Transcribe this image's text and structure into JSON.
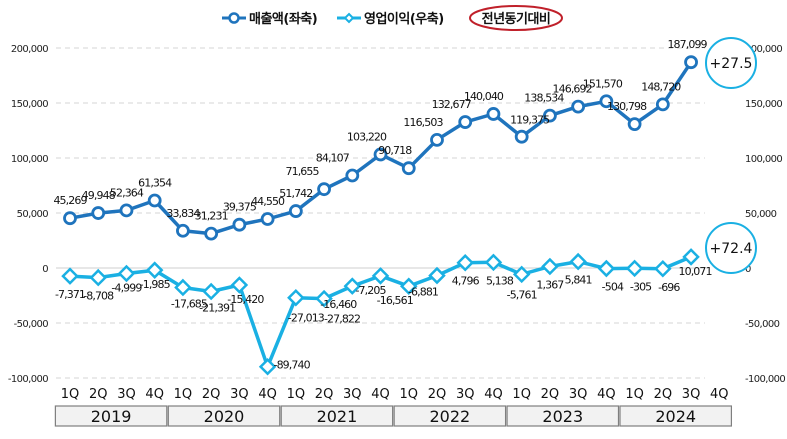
{
  "chart_data": {
    "type": "line",
    "title": "",
    "legend": {
      "placement": "top-center",
      "entries": [
        "매출액(좌축)",
        "영업이익(우축)"
      ],
      "note": "전년동기대비"
    },
    "x": [
      "2019 1Q",
      "2019 2Q",
      "2019 3Q",
      "2019 4Q",
      "2020 1Q",
      "2020 2Q",
      "2020 3Q",
      "2020 4Q",
      "2021 1Q",
      "2021 2Q",
      "2021 3Q",
      "2021 4Q",
      "2022 1Q",
      "2022 2Q",
      "2022 3Q",
      "2022 4Q",
      "2023 1Q",
      "2023 2Q",
      "2023 3Q",
      "2023 4Q",
      "2024 1Q",
      "2024 2Q",
      "2024 3Q",
      "2024 4Q"
    ],
    "quarters": [
      "1Q",
      "2Q",
      "3Q",
      "4Q"
    ],
    "years": [
      "2019",
      "2020",
      "2021",
      "2022",
      "2023",
      "2024"
    ],
    "series": [
      {
        "name": "매출액(좌축)",
        "axis": "left",
        "color": "#1f74bd",
        "marker": "circle",
        "values": [
          45269,
          49948,
          52364,
          61354,
          33834,
          31231,
          39375,
          44550,
          51742,
          71655,
          84107,
          103220,
          90718,
          116503,
          132677,
          140040,
          119375,
          138534,
          146692,
          151570,
          130798,
          148720,
          187099,
          null
        ],
        "labels": [
          "45,269",
          "49,948",
          "52,364",
          "61,354",
          "33,834",
          "31,231",
          "39,375",
          "44,550",
          "51,742",
          "71,655",
          "84,107",
          "103,220",
          "90,718",
          "116,503",
          "132,677",
          "140,040",
          "119,375",
          "138,534",
          "146,692",
          "151,570",
          "130,798",
          "148,720",
          "187,099",
          ""
        ]
      },
      {
        "name": "영업이익(우축)",
        "axis": "right",
        "color": "#1ab0e3",
        "marker": "diamond",
        "values": [
          -7371,
          -8708,
          -4999,
          -1985,
          -17685,
          -21391,
          -15420,
          -89740,
          -27013,
          -27822,
          -16460,
          -7205,
          -16561,
          -6881,
          4796,
          5138,
          -5761,
          1367,
          5841,
          -504,
          -305,
          -696,
          10071,
          null
        ],
        "labels": [
          "-7,371",
          "-8,708",
          "-4,999",
          "-1,985",
          "-17,685",
          "-21,391",
          "-15,420",
          "-89,740",
          "-27,013",
          "-27,822",
          "-16,460",
          "-7,205",
          "-16,561",
          "-6,881",
          "4,796",
          "5,138",
          "-5,761",
          "1,367",
          "5,841",
          "-504",
          "-305",
          "-696",
          "10,071",
          ""
        ]
      }
    ],
    "left_axis": {
      "ylim": [
        -100000,
        200000
      ],
      "ticks": [
        "200,000",
        "150,000",
        "100,000",
        "50,000",
        "0",
        "-50,000",
        "-100,000"
      ]
    },
    "right_axis": {
      "ylim": [
        -100000,
        200000
      ],
      "ticks": [
        "200,000",
        "150,000",
        "100,000",
        "50,000",
        "0",
        "-50,000",
        "-100,000"
      ]
    },
    "grid": true,
    "annotations": [
      {
        "text": "+27.5",
        "series": "매출액(좌축)"
      },
      {
        "text": "+72.4",
        "series": "영업이익(우축)"
      }
    ]
  }
}
